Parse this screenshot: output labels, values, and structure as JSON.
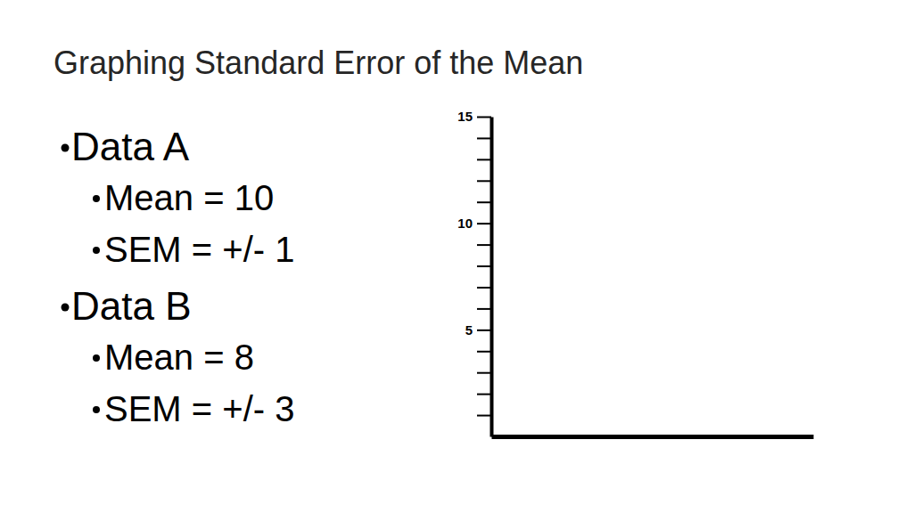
{
  "title": "Graphing Standard Error of the Mean",
  "bullets": [
    {
      "label": "Data A",
      "items": [
        "Mean = 10",
        "SEM = +/- 1"
      ]
    },
    {
      "label": "Data B",
      "items": [
        "Mean = 8",
        "SEM = +/- 3"
      ]
    }
  ],
  "chart_data": {
    "type": "bar",
    "ylim": [
      0,
      15
    ],
    "yticks": [
      {
        "value": 1,
        "label": null
      },
      {
        "value": 2,
        "label": null
      },
      {
        "value": 3,
        "label": null
      },
      {
        "value": 4,
        "label": null
      },
      5,
      {
        "value": 6,
        "label": null
      },
      {
        "value": 7,
        "label": null
      },
      {
        "value": 8,
        "label": null
      },
      {
        "value": 9,
        "label": null
      },
      10,
      {
        "value": 11,
        "label": null
      },
      {
        "value": 12,
        "label": null
      },
      {
        "value": 13,
        "label": null
      },
      {
        "value": 14,
        "label": null
      },
      15
    ]
  }
}
